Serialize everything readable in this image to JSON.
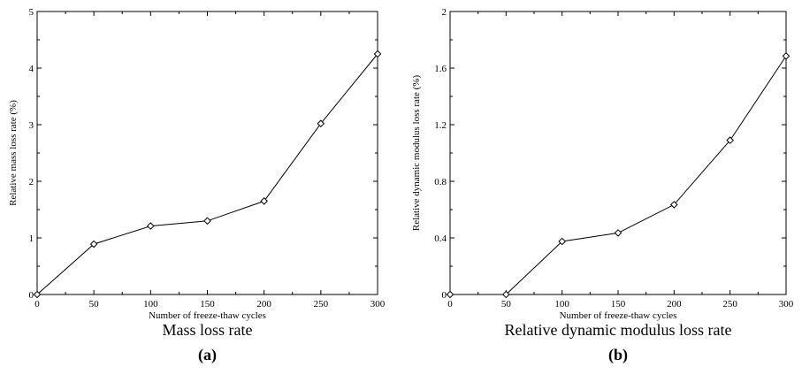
{
  "chart_data": [
    {
      "type": "line",
      "caption": "Mass loss rate",
      "sublabel": "(a)",
      "xlabel": "Number of freeze-thaw cycles",
      "ylabel": "Relative mass loss rate (%)",
      "x": [
        0,
        50,
        100,
        150,
        200,
        250,
        300
      ],
      "y": [
        0,
        0.89,
        1.21,
        1.3,
        1.65,
        3.02,
        4.25
      ],
      "xlim": [
        0,
        300
      ],
      "ylim": [
        0,
        5
      ],
      "xticks": [
        "0",
        "50",
        "100",
        "150",
        "200",
        "250",
        "300"
      ],
      "yticks": [
        "0",
        "1",
        "2",
        "3",
        "4",
        "5"
      ],
      "marker": "diamond",
      "grid": false
    },
    {
      "type": "line",
      "caption": "Relative dynamic modulus loss rate",
      "sublabel": "(b)",
      "xlabel": "Number of freeze-thaw cycles",
      "ylabel": "Relative dynamic modulus loss rate (%)",
      "x": [
        0,
        50,
        100,
        150,
        200,
        250,
        300
      ],
      "y": [
        0,
        0,
        0.375,
        0.435,
        0.635,
        1.09,
        1.685
      ],
      "xlim": [
        0,
        300
      ],
      "ylim": [
        0,
        2
      ],
      "xticks": [
        "0",
        "50",
        "100",
        "150",
        "200",
        "250",
        "300"
      ],
      "yticks": [
        "0",
        "0.4",
        "0.8",
        "1.2",
        "1.6",
        "2"
      ],
      "marker": "diamond",
      "grid": false
    }
  ]
}
